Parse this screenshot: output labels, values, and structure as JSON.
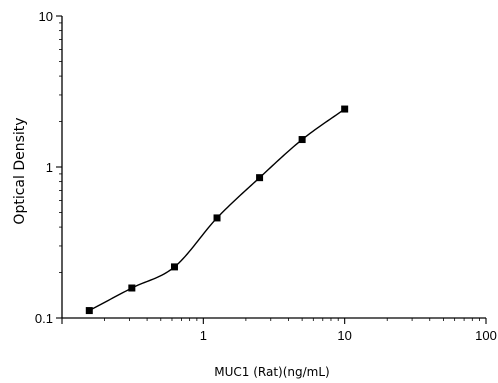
{
  "chart_data": {
    "type": "scatter",
    "title": "",
    "xlabel": "MUC1 (Rat)(ng/mL)",
    "ylabel": "Optical Density",
    "x_scale": "log",
    "y_scale": "log",
    "xlim": [
      0.1,
      100
    ],
    "ylim": [
      0.1,
      10
    ],
    "x_tick_labels": [
      "1",
      "10",
      "100"
    ],
    "y_tick_labels": [
      "0.1",
      "1",
      "10"
    ],
    "grid": false,
    "legend": "none",
    "series": [
      {
        "x": [
          0.156,
          0.312,
          0.625,
          1.25,
          2.5,
          5,
          10
        ],
        "y": [
          0.112,
          0.158,
          0.218,
          0.46,
          0.85,
          1.52,
          2.42
        ]
      }
    ],
    "fit_curve": true,
    "colors": {
      "marker": "#000000",
      "curve": "#000000",
      "axis": "#000000"
    }
  }
}
